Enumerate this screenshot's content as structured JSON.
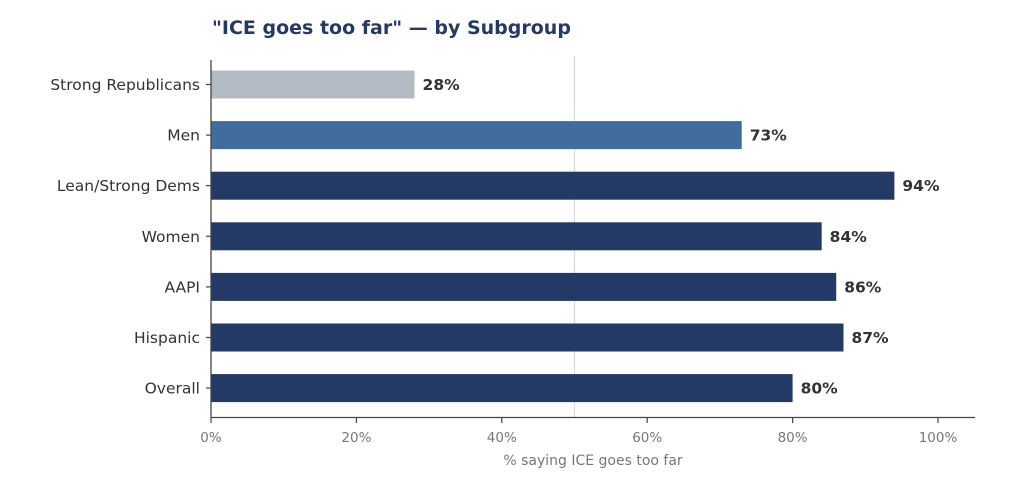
{
  "chart_data": {
    "type": "bar",
    "orientation": "horizontal",
    "title": "\"ICE goes too far\" — by Subgroup",
    "xlabel": "% saying ICE goes too far",
    "ylabel": "",
    "xlim": [
      0,
      105
    ],
    "xticks": [
      0,
      20,
      40,
      60,
      80,
      100
    ],
    "xtick_labels": [
      "0%",
      "20%",
      "40%",
      "60%",
      "80%",
      "100%"
    ],
    "reference_line": 50,
    "categories": [
      "Strong Republicans",
      "Men",
      "Lean/Strong Dems",
      "Women",
      "AAPI",
      "Hispanic",
      "Overall"
    ],
    "values": [
      28,
      73,
      94,
      84,
      86,
      87,
      80
    ],
    "value_labels": [
      "28%",
      "73%",
      "94%",
      "84%",
      "86%",
      "87%",
      "80%"
    ],
    "bar_colors": [
      "#b3bcc5",
      "#416d9e",
      "#233966",
      "#233966",
      "#233966",
      "#233966",
      "#233966"
    ],
    "title_color": "#233966",
    "grid": false,
    "legend": "none"
  }
}
